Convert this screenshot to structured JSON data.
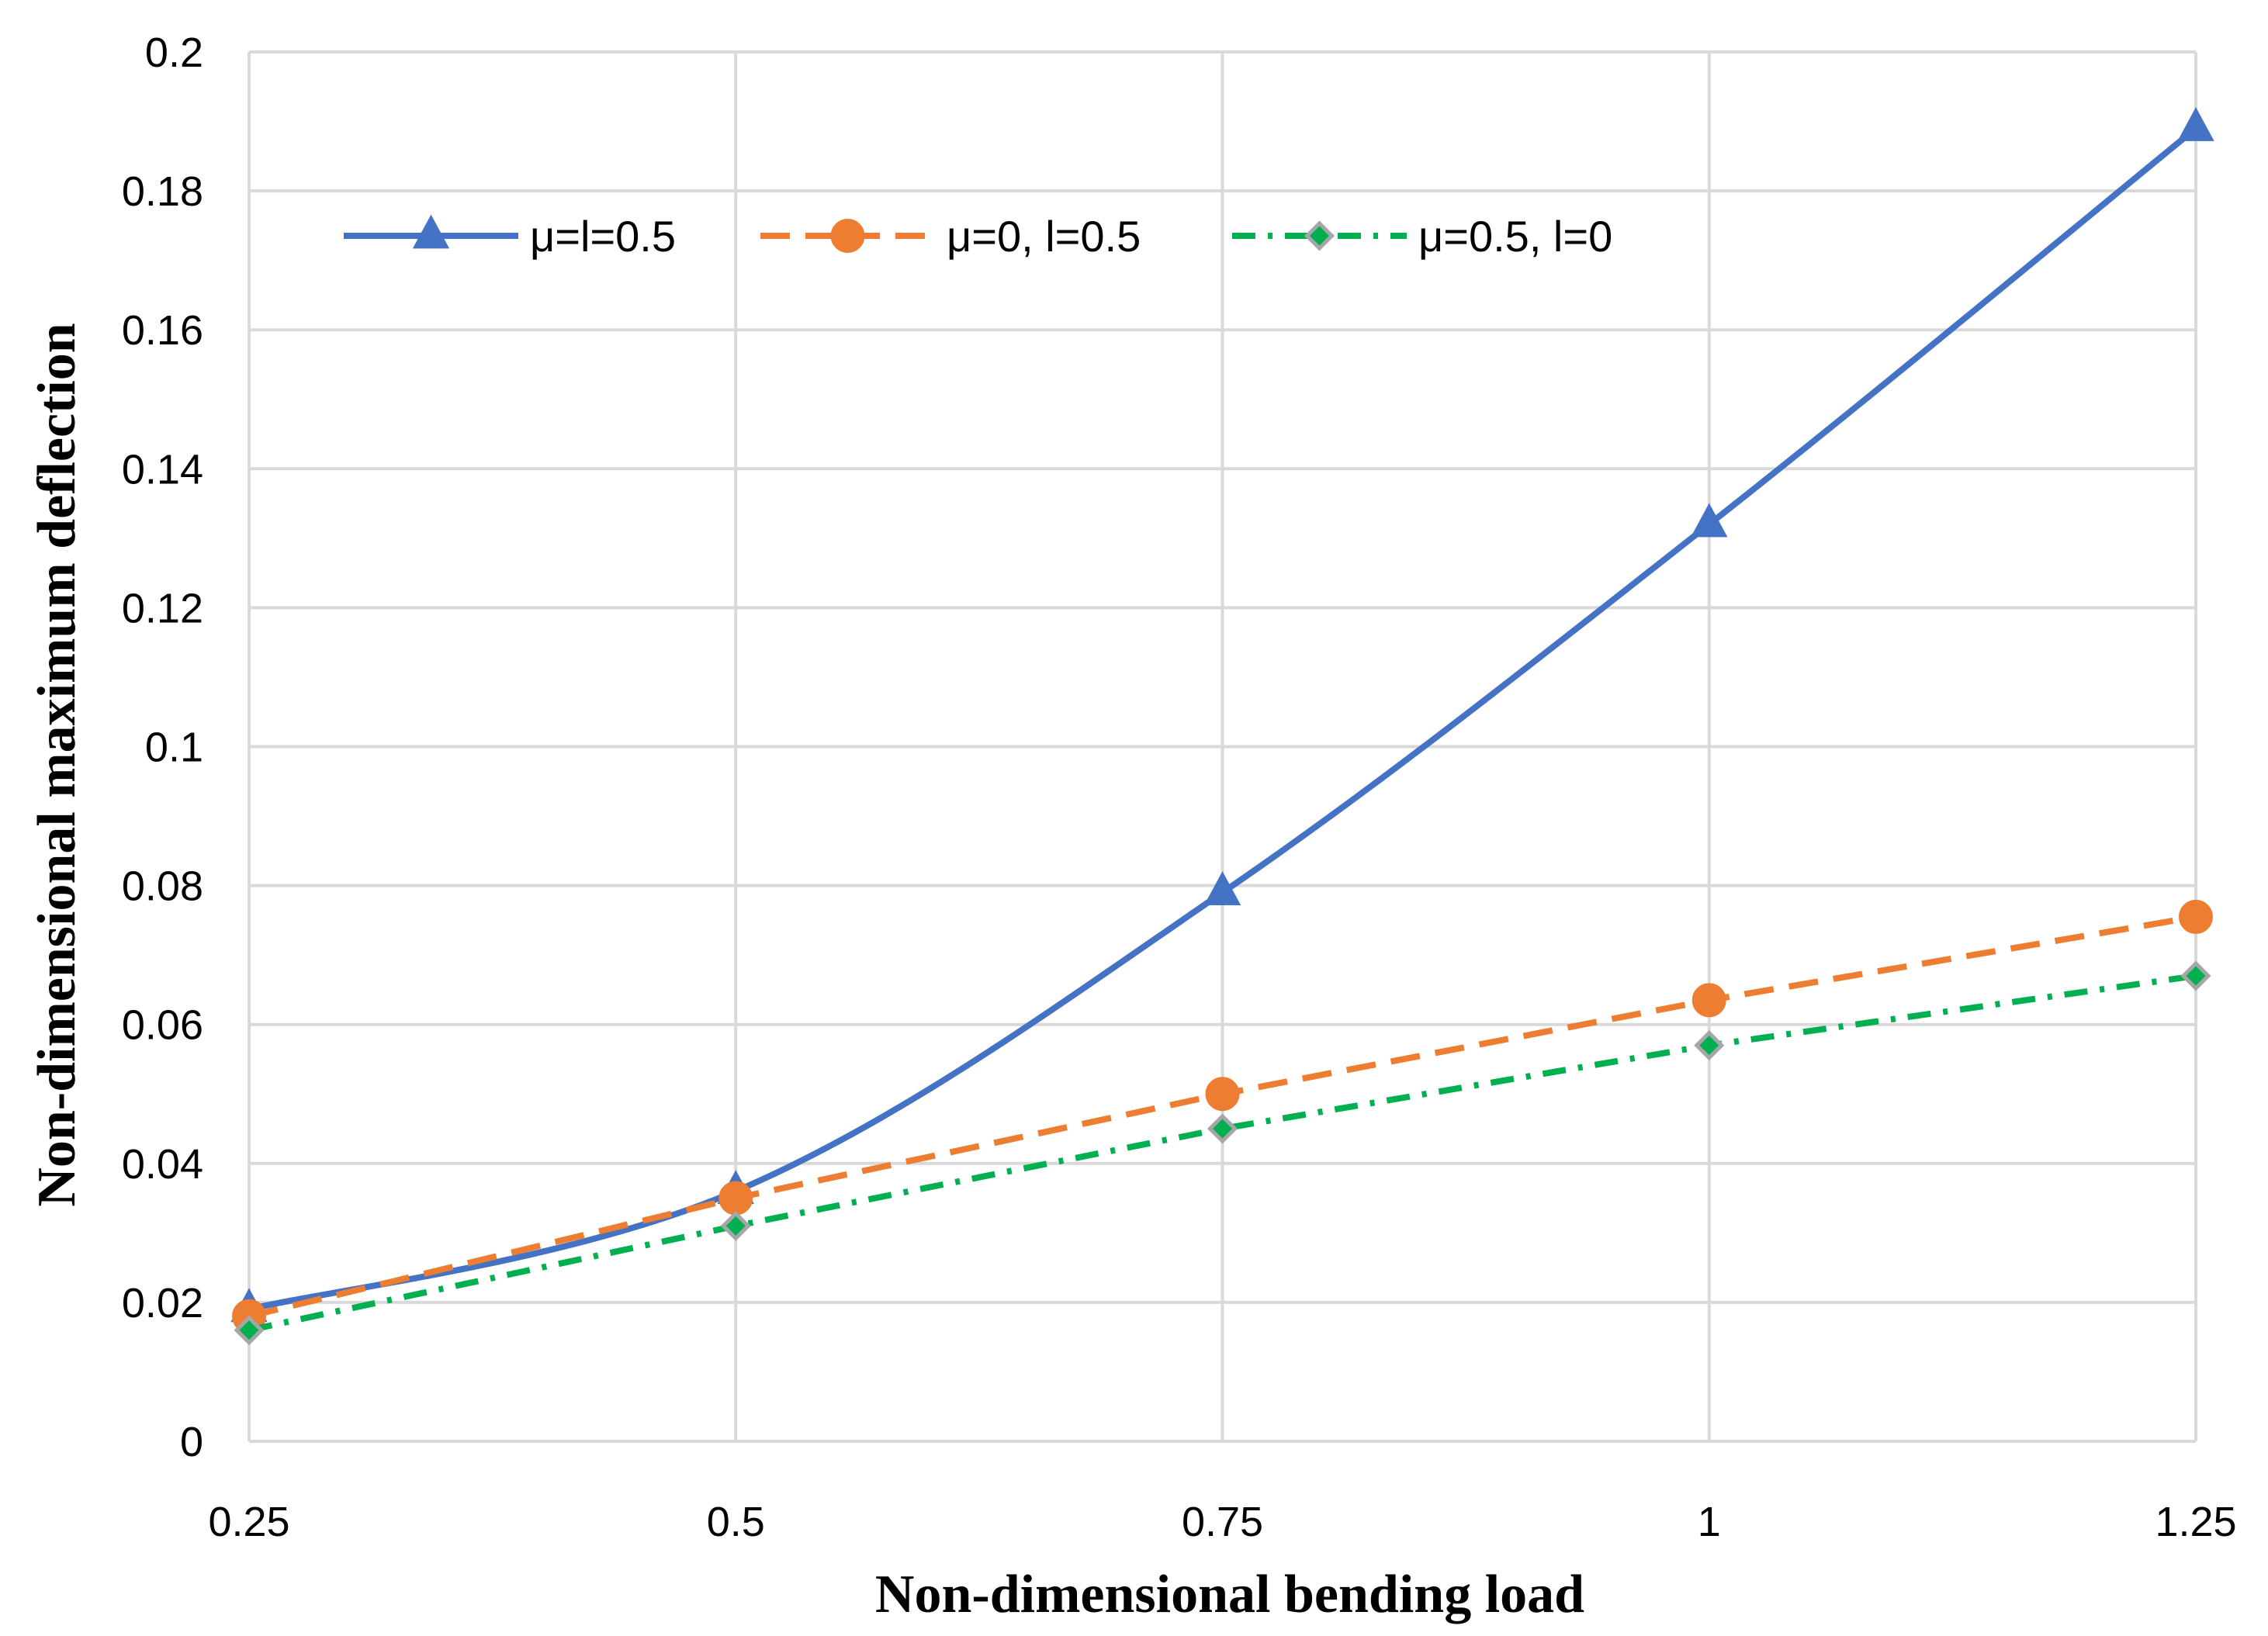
{
  "chart_data": {
    "type": "line",
    "title": "",
    "xlabel": "Non-dimensional bending load",
    "ylabel": "Non-dimensional maximum deflection",
    "x": [
      0.25,
      0.5,
      0.75,
      1,
      1.25
    ],
    "xtick_labels": [
      "0.25",
      "0.5",
      "0.75",
      "1",
      "1.25"
    ],
    "ytick_labels": [
      "0",
      "0.02",
      "0.04",
      "0.06",
      "0.08",
      "0.1",
      "0.12",
      "0.14",
      "0.16",
      "0.18",
      "0.2"
    ],
    "xlim": [
      0.25,
      1.25
    ],
    "ylim": [
      0,
      0.2
    ],
    "grid": true,
    "legend_position": "top-left inside",
    "series": [
      {
        "name": "μ=l=0.5",
        "values": [
          0.019,
          0.036,
          0.079,
          0.132,
          0.189
        ],
        "color": "#4472c4",
        "marker": "triangle",
        "line_style": "solid",
        "smooth": true
      },
      {
        "name": "μ=0, l=0.5",
        "values": [
          0.018,
          0.035,
          0.05,
          0.0635,
          0.0755
        ],
        "color": "#ed7d31",
        "marker": "circle",
        "line_style": "dashed",
        "smooth": false
      },
      {
        "name": "μ=0.5, l=0",
        "values": [
          0.016,
          0.031,
          0.045,
          0.057,
          0.067
        ],
        "color": "#00b050",
        "marker": "diamond",
        "line_style": "dash-dot",
        "smooth": false
      }
    ]
  }
}
